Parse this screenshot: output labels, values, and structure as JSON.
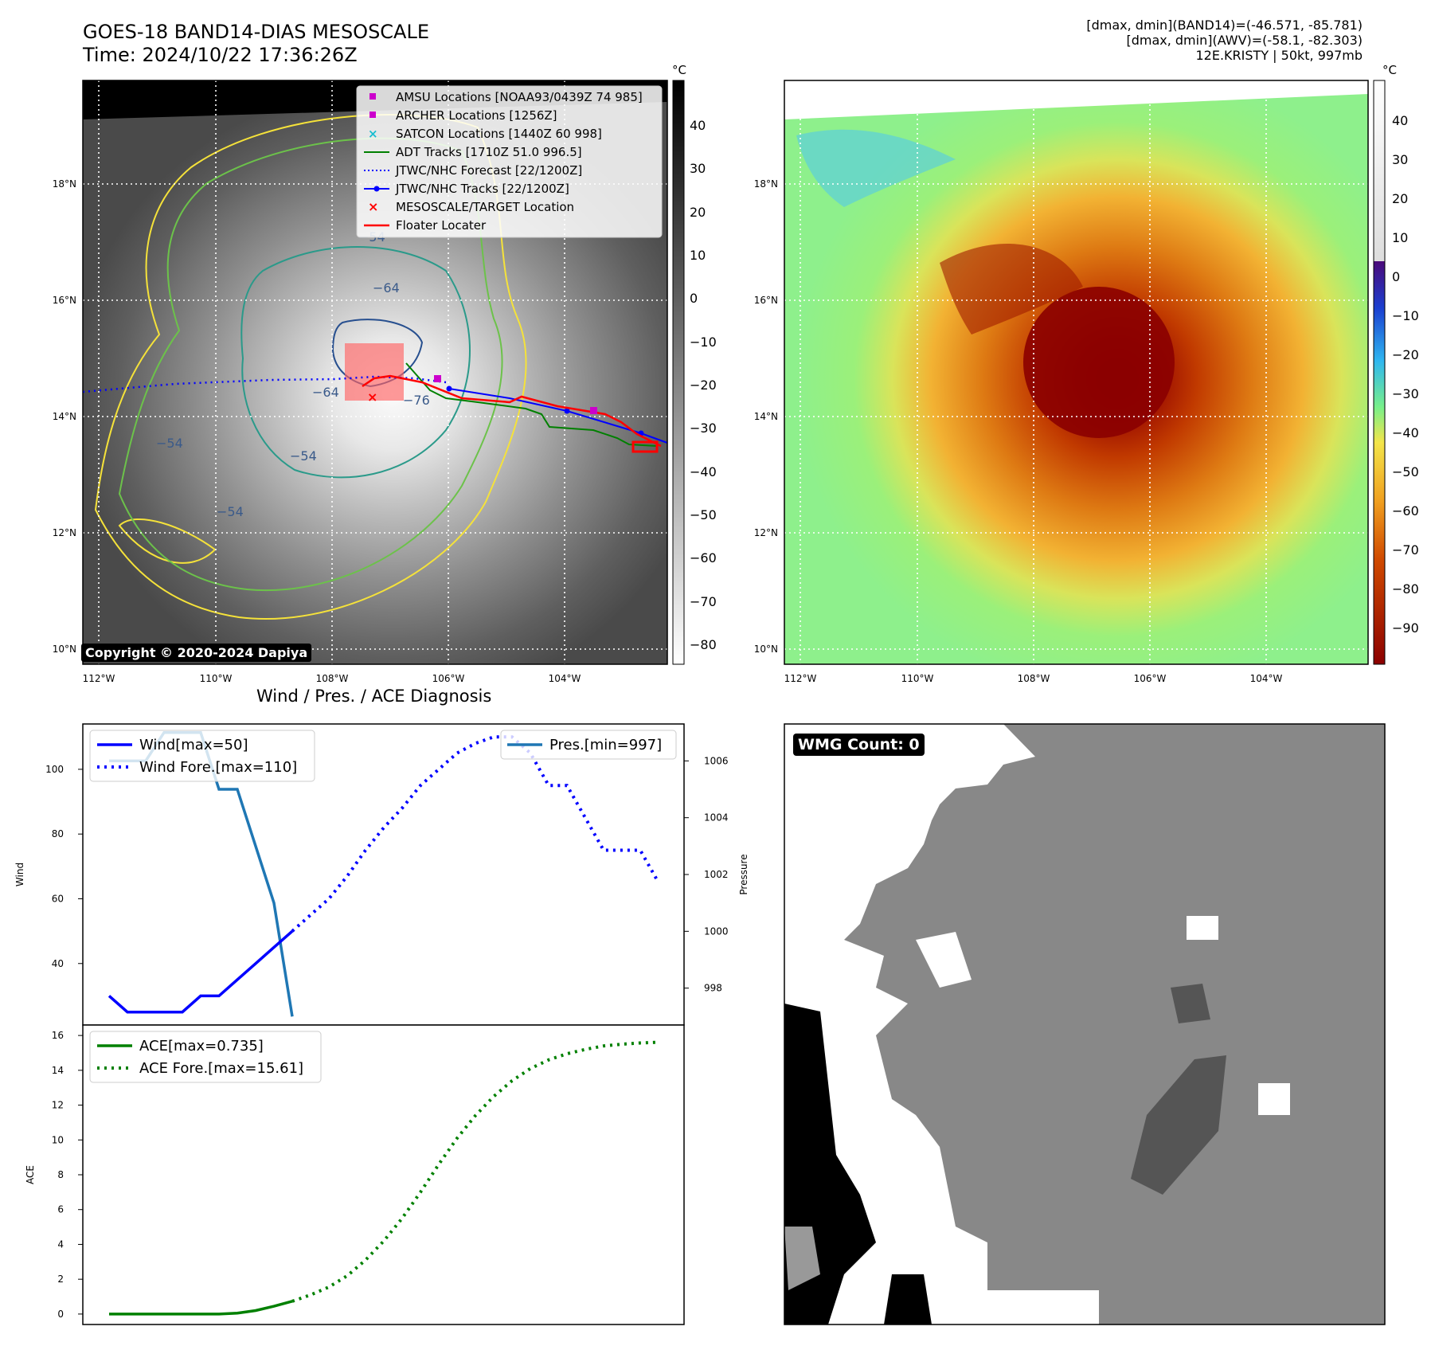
{
  "header": {
    "title_line1": "GOES-18 BAND14-DIAS MESOSCALE",
    "title_line2": "Time: 2024/10/22 17:36:26Z",
    "info_line1": "[dmax, dmin](BAND14)=(-46.571, -85.781)",
    "info_line2": "[dmax, dmin](AWV)=(-58.1, -82.303)",
    "info_line3": "12E.KRISTY | 50kt, 997mb"
  },
  "colors": {
    "wind": "#0000ff",
    "pressure": "#1f77b4",
    "ace": "#008000",
    "track_red": "#ff0000",
    "adt": "#008000",
    "satcon": "#17becf",
    "amsu": "#cc00cc"
  },
  "map": {
    "lat_labels": [
      "18°N",
      "16°N",
      "14°N",
      "12°N",
      "10°N"
    ],
    "lon_labels": [
      "112°W",
      "110°W",
      "108°W",
      "106°W",
      "104°W"
    ],
    "contour_labels": [
      "−54",
      "−64",
      "−76",
      "−54",
      "−64",
      "−54",
      "−54"
    ],
    "copyright": "Copyright © 2020-2024 Dapiya",
    "legend": [
      "AMSU Locations [NOAA93/0439Z 74 985]",
      "ARCHER Locations [1256Z]",
      "SATCON Locations [1440Z 60 998]",
      "ADT Tracks [1710Z 51.0 996.5]",
      "JTWC/NHC Forecast [22/1200Z]",
      "JTWC/NHC Tracks [22/1200Z]",
      "MESOSCALE/TARGET Location",
      "Floater Locater"
    ],
    "gray_cbar": {
      "unit": "°C",
      "ticks": [
        "40",
        "30",
        "20",
        "10",
        "0",
        "−10",
        "−20",
        "−30",
        "−40",
        "−50",
        "−60",
        "−70",
        "−80"
      ]
    },
    "color_cbar": {
      "unit": "°C",
      "ticks": [
        "40",
        "30",
        "20",
        "10",
        "0",
        "−10",
        "−20",
        "−30",
        "−40",
        "−50",
        "−60",
        "−70",
        "−80",
        "−90"
      ]
    }
  },
  "diagnosis": {
    "title": "Wind / Pres. / ACE Diagnosis",
    "wind_ylabel": "Wind",
    "pres_ylabel": "Pressure",
    "ace_ylabel": "ACE",
    "legend_wind": "Wind[max=50]",
    "legend_wind_fore": "Wind Fore.[max=110]",
    "legend_pres": "Pres.[min=997]",
    "legend_ace": "ACE[max=0.735]",
    "legend_ace_fore": "ACE Fore.[max=15.61]",
    "wmg": "WMG Count: 0"
  },
  "chart_data": [
    {
      "type": "line",
      "title": "Wind / Pres. / ACE Diagnosis",
      "ylabel": "Wind",
      "ylim": [
        21,
        114
      ],
      "yticks": [
        40,
        60,
        80,
        100
      ],
      "x": [
        0,
        1,
        2,
        3,
        4,
        5,
        6,
        7,
        8,
        9,
        10,
        11,
        12,
        13,
        14,
        15,
        16,
        17,
        18,
        19,
        20,
        21,
        22,
        23,
        24,
        25,
        26,
        27,
        28,
        29,
        30
      ],
      "series": [
        {
          "name": "Wind[max=50]",
          "x": [
            0,
            1,
            2,
            3,
            4,
            5,
            6,
            7,
            8,
            9,
            10
          ],
          "values": [
            30,
            25,
            25,
            25,
            25,
            30,
            30,
            35,
            40,
            45,
            50
          ]
        },
        {
          "name": "Wind Fore.[max=110]",
          "x": [
            10,
            11,
            12,
            13,
            14,
            15,
            16,
            17,
            18,
            19,
            20,
            21,
            22,
            23,
            24,
            25,
            26,
            27,
            28,
            29,
            30
          ],
          "values": [
            50,
            55,
            60,
            67,
            75,
            82,
            88,
            95,
            100,
            105,
            108,
            110,
            110,
            105,
            95,
            95,
            85,
            75,
            75,
            75,
            65
          ]
        }
      ]
    },
    {
      "type": "line",
      "ylabel": "Pressure",
      "ylim": [
        996.7,
        1007.3
      ],
      "yticks": [
        998,
        1000,
        1002,
        1004,
        1006
      ],
      "series": [
        {
          "name": "Pres.[min=997]",
          "x": [
            0,
            1,
            2,
            3,
            4,
            5,
            6,
            7,
            8,
            9,
            10
          ],
          "values": [
            1006,
            1006,
            1006,
            1007,
            1007,
            1007,
            1005,
            1005,
            1003,
            1001,
            997
          ]
        }
      ]
    },
    {
      "type": "line",
      "ylabel": "ACE",
      "ylim": [
        -0.6,
        16.6
      ],
      "yticks": [
        0,
        2,
        4,
        6,
        8,
        10,
        12,
        14,
        16
      ],
      "series": [
        {
          "name": "ACE[max=0.735]",
          "x": [
            0,
            1,
            2,
            3,
            4,
            5,
            6,
            7,
            8,
            9,
            10
          ],
          "values": [
            0,
            0,
            0,
            0,
            0,
            0,
            0,
            0.05,
            0.2,
            0.45,
            0.735
          ]
        },
        {
          "name": "ACE Fore.[max=15.61]",
          "x": [
            10,
            11,
            12,
            13,
            14,
            15,
            16,
            17,
            18,
            19,
            20,
            21,
            22,
            23,
            24,
            25,
            26,
            27,
            28,
            29,
            30
          ],
          "values": [
            0.735,
            1.1,
            1.55,
            2.2,
            3.1,
            4.2,
            5.5,
            7.0,
            8.6,
            10.1,
            11.4,
            12.5,
            13.4,
            14.1,
            14.6,
            14.95,
            15.2,
            15.4,
            15.5,
            15.57,
            15.61
          ]
        }
      ]
    }
  ]
}
